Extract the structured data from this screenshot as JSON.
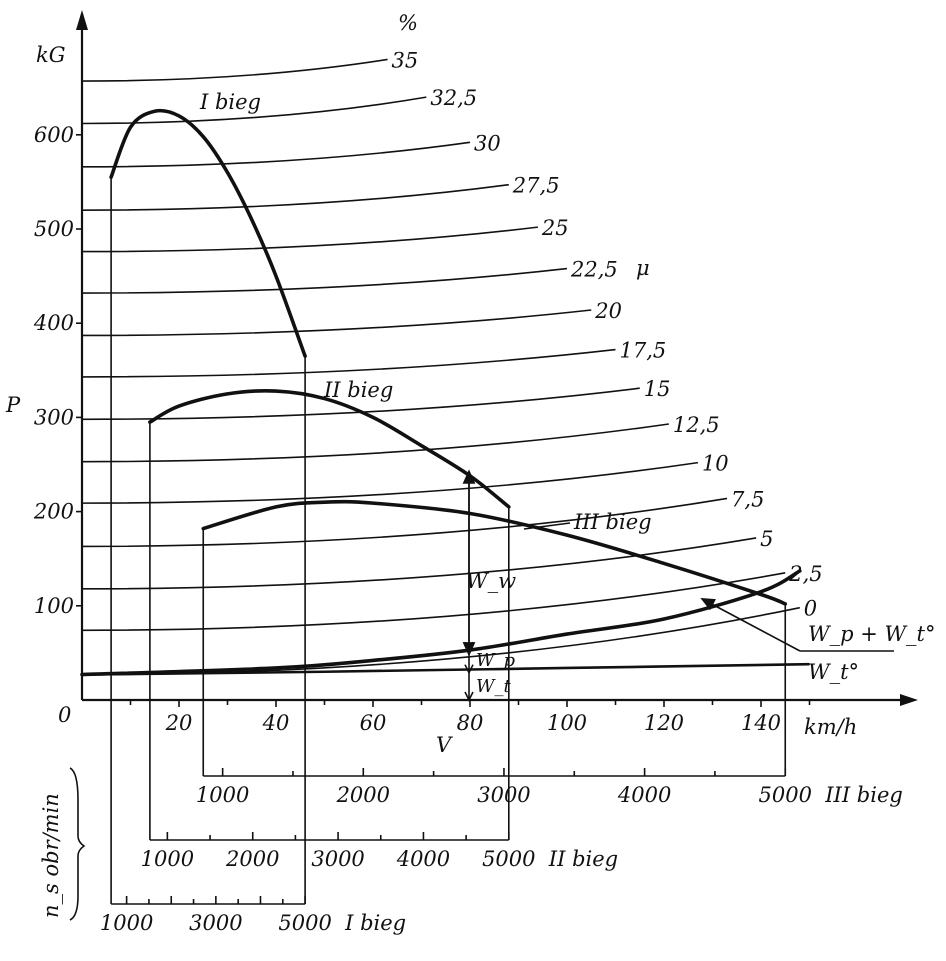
{
  "chart_data": {
    "type": "line",
    "title": "",
    "xlabel": "V",
    "x_unit": "km/h",
    "ylabel": "P",
    "y_unit": "kG",
    "xlim": [
      0,
      155
    ],
    "ylim": [
      0,
      680
    ],
    "x_ticks": [
      "20",
      "40",
      "60",
      "80",
      "100",
      "120",
      "140"
    ],
    "y_ticks": [
      "100",
      "200",
      "300",
      "400",
      "500",
      "600"
    ],
    "origin_label": "0",
    "grade_unit_label": "%",
    "grade_axis_symbol": "μ",
    "grade_curves": [
      {
        "label": "35",
        "x": [
          0,
          63
        ],
        "y": [
          657,
          680
        ]
      },
      {
        "label": "32,5",
        "x": [
          0,
          71
        ],
        "y": [
          612,
          640
        ]
      },
      {
        "label": "30",
        "x": [
          0,
          80
        ],
        "y": [
          566,
          592
        ]
      },
      {
        "label": "27,5",
        "x": [
          0,
          88
        ],
        "y": [
          520,
          547
        ]
      },
      {
        "label": "25",
        "x": [
          0,
          94
        ],
        "y": [
          476,
          502
        ]
      },
      {
        "label": "22,5",
        "x": [
          0,
          100
        ],
        "y": [
          432,
          458
        ]
      },
      {
        "label": "20",
        "x": [
          0,
          105
        ],
        "y": [
          387,
          414
        ]
      },
      {
        "label": "17,5",
        "x": [
          0,
          110
        ],
        "y": [
          343,
          372
        ]
      },
      {
        "label": "15",
        "x": [
          0,
          115
        ],
        "y": [
          298,
          331
        ]
      },
      {
        "label": "12,5",
        "x": [
          0,
          121
        ],
        "y": [
          253,
          293
        ]
      },
      {
        "label": "10",
        "x": [
          0,
          127
        ],
        "y": [
          209,
          252
        ]
      },
      {
        "label": "7,5",
        "x": [
          0,
          133
        ],
        "y": [
          163,
          214
        ]
      },
      {
        "label": "5",
        "x": [
          0,
          139
        ],
        "y": [
          118,
          172
        ]
      },
      {
        "label": "2,5",
        "x": [
          0,
          145
        ],
        "y": [
          74,
          135
        ]
      },
      {
        "label": "0",
        "x": [
          0,
          148
        ],
        "y": [
          27,
          98
        ]
      }
    ],
    "series": [
      {
        "name": "I bieg",
        "x": [
          6,
          10,
          15,
          20,
          25,
          30,
          35,
          40,
          46
        ],
        "y": [
          555,
          608,
          625,
          620,
          598,
          560,
          510,
          450,
          365
        ]
      },
      {
        "name": "II bieg",
        "x": [
          14,
          20,
          30,
          40,
          50,
          60,
          70,
          80,
          88
        ],
        "y": [
          295,
          312,
          325,
          328,
          320,
          300,
          270,
          238,
          205
        ]
      },
      {
        "name": "III bieg",
        "x": [
          25,
          40,
          50,
          60,
          80,
          100,
          120,
          140,
          145
        ],
        "y": [
          182,
          205,
          210,
          209,
          198,
          175,
          145,
          112,
          102
        ]
      },
      {
        "name": "W_p + W_t°",
        "x": [
          0,
          40,
          60,
          80,
          100,
          120,
          140,
          148
        ],
        "y": [
          27,
          34,
          42,
          53,
          70,
          86,
          115,
          137
        ]
      },
      {
        "name": "W_t°",
        "x": [
          0,
          50,
          100,
          150
        ],
        "y": [
          27,
          30,
          34,
          38
        ]
      }
    ],
    "annotations": {
      "gear_labels": [
        "I bieg",
        "II bieg",
        "III bieg"
      ],
      "resistance_labels": {
        "sum": "W_p + W_t°",
        "rolling": "W_t°"
      },
      "marker_v": 80,
      "marker_labels": [
        "W_w",
        "W_p",
        "W_t"
      ]
    },
    "rpm_scales": {
      "axis_label": "n_s obr/min",
      "gears": [
        {
          "name": "III bieg",
          "v_range": [
            25,
            145
          ],
          "ticks": [
            "1000",
            "2000",
            "3000",
            "4000",
            "5000"
          ],
          "rpm": [
            1000,
            2000,
            3000,
            4000,
            5000
          ]
        },
        {
          "name": "II bieg",
          "v_range": [
            14,
            88
          ],
          "ticks": [
            "1000",
            "2000",
            "3000",
            "4000",
            "5000"
          ],
          "rpm": [
            1000,
            2000,
            3000,
            4000,
            5000
          ]
        },
        {
          "name": "I bieg",
          "v_range": [
            6,
            46
          ],
          "ticks": [
            "1000",
            "3000",
            "5000"
          ],
          "rpm": [
            1000,
            3000,
            5000
          ]
        }
      ]
    },
    "grid": false,
    "legend": "none"
  }
}
